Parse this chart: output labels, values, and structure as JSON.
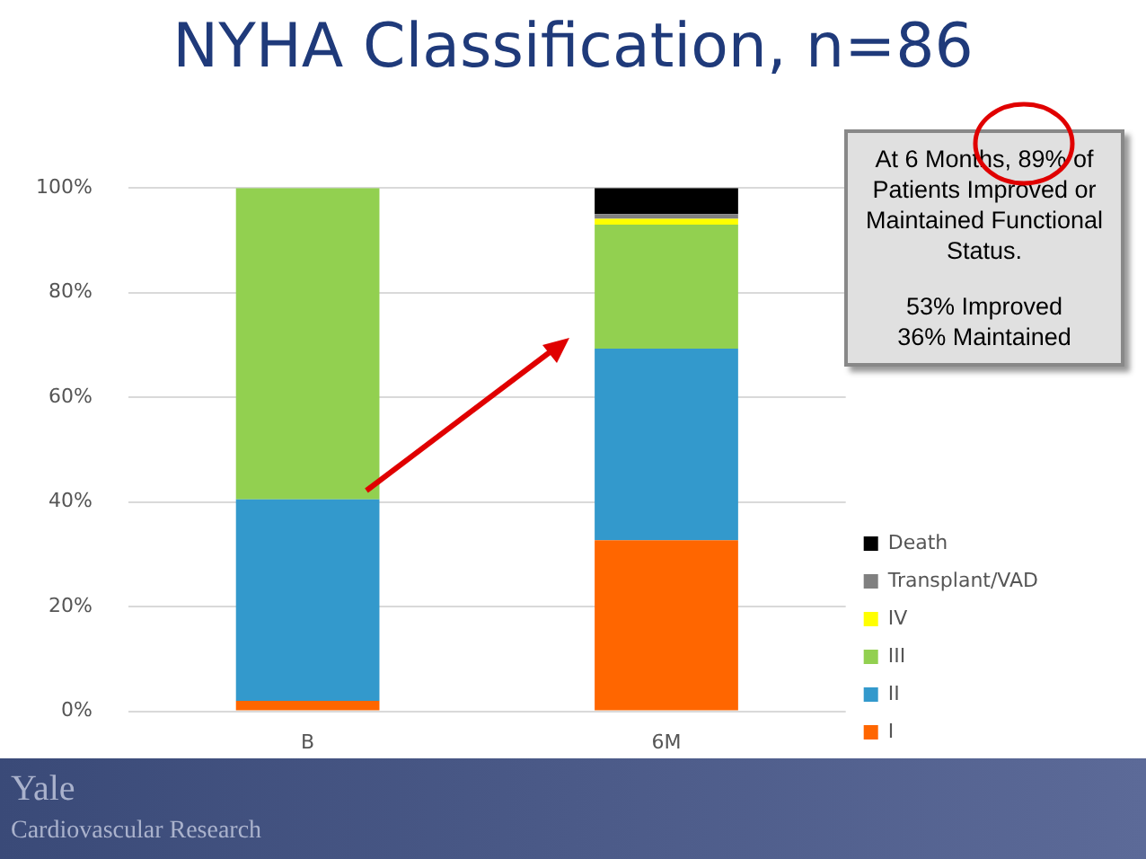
{
  "chart_data": {
    "type": "bar",
    "title": "NYHA Classification, n=86",
    "categories": [
      "B",
      "6M"
    ],
    "stacked": true,
    "series": [
      {
        "name": "I",
        "color": "#ff6600",
        "values": [
          2.0,
          32.7
        ]
      },
      {
        "name": "II",
        "color": "#3399cc",
        "values": [
          38.5,
          36.6
        ]
      },
      {
        "name": "III",
        "color": "#92d050",
        "values": [
          59.5,
          23.7
        ]
      },
      {
        "name": "IV",
        "color": "#ffff00",
        "values": [
          0,
          1.1
        ]
      },
      {
        "name": "Transplant/VAD",
        "color": "#808080",
        "values": [
          0,
          0.9
        ]
      },
      {
        "name": "Death",
        "color": "#000000",
        "values": [
          0,
          5.0
        ]
      }
    ],
    "ylim": [
      0,
      100
    ],
    "yticks": [
      {
        "value": 0,
        "label": "0%"
      },
      {
        "value": 20,
        "label": "20%"
      },
      {
        "value": 40,
        "label": "40%"
      },
      {
        "value": 60,
        "label": "60%"
      },
      {
        "value": 80,
        "label": "80%"
      },
      {
        "value": 100,
        "label": "100%"
      }
    ],
    "grid": "y",
    "legend": "bottom right",
    "annotations": [
      "At 6 Months, 89% of Patients Improved or Maintained Functional Status.",
      "53% Improved",
      "36% Maintained",
      "Yale",
      "Cardiovascular Research"
    ]
  }
}
